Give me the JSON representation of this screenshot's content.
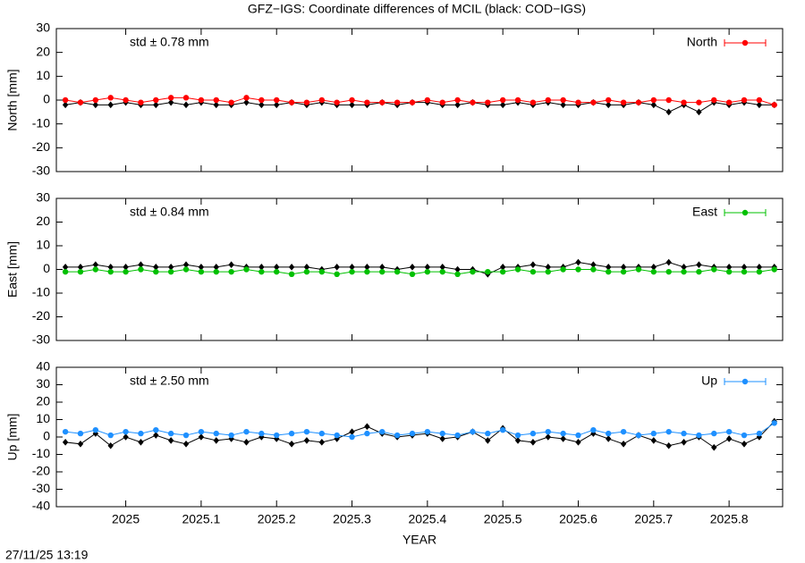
{
  "chart_data": [
    {
      "type": "line",
      "title": "GFZ−IGS: Coordinate differences of MCIL (black: COD−IGS)",
      "ylabel": "North [mm]",
      "annotation": "std ± 0.78 mm",
      "legend": "upper right",
      "xlim": [
        2024.908,
        2025.871
      ],
      "ylim": [
        -30,
        30
      ],
      "yticks": [
        -30,
        -20,
        -10,
        0,
        10,
        20,
        30
      ],
      "x": [
        2024.92,
        2024.94,
        2024.96,
        2024.98,
        2025.0,
        2025.02,
        2025.04,
        2025.06,
        2025.08,
        2025.1,
        2025.12,
        2025.14,
        2025.16,
        2025.18,
        2025.2,
        2025.22,
        2025.24,
        2025.26,
        2025.28,
        2025.3,
        2025.32,
        2025.34,
        2025.36,
        2025.38,
        2025.4,
        2025.42,
        2025.44,
        2025.46,
        2025.48,
        2025.5,
        2025.52,
        2025.54,
        2025.56,
        2025.58,
        2025.6,
        2025.62,
        2025.64,
        2025.66,
        2025.68,
        2025.7,
        2025.72,
        2025.74,
        2025.76,
        2025.78,
        2025.8,
        2025.82,
        2025.84,
        2025.86
      ],
      "series": [
        {
          "name": "North",
          "color": "#ff0000",
          "values": [
            0,
            -1,
            0,
            1,
            0,
            -1,
            0,
            1,
            1,
            0,
            0,
            -1,
            1,
            0,
            0,
            -1,
            -1,
            0,
            -1,
            0,
            -1,
            -1,
            -1,
            -1,
            0,
            -1,
            0,
            -1,
            -1,
            0,
            0,
            -1,
            0,
            0,
            -1,
            -1,
            0,
            -1,
            -1,
            0,
            0,
            -1,
            -1,
            0,
            -1,
            0,
            0,
            -2
          ]
        },
        {
          "color": "#000000",
          "values": [
            -2,
            -1,
            -2,
            -2,
            -1,
            -2,
            -2,
            -1,
            -2,
            -1,
            -2,
            -2,
            -1,
            -2,
            -2,
            -1,
            -2,
            -1,
            -2,
            -2,
            -2,
            -1,
            -2,
            -1,
            -1,
            -2,
            -2,
            -1,
            -2,
            -2,
            -1,
            -2,
            -1,
            -2,
            -2,
            -1,
            -2,
            -2,
            -1,
            -2,
            -5,
            -2,
            -5,
            -1,
            -2,
            -1,
            -2,
            -2
          ]
        }
      ]
    },
    {
      "type": "line",
      "ylabel": "East [mm]",
      "annotation": "std ± 0.84 mm",
      "legend": "upper right",
      "xlim": [
        2024.908,
        2025.871
      ],
      "ylim": [
        -30,
        30
      ],
      "yticks": [
        -30,
        -20,
        -10,
        0,
        10,
        20,
        30
      ],
      "x": [
        2024.92,
        2024.94,
        2024.96,
        2024.98,
        2025.0,
        2025.02,
        2025.04,
        2025.06,
        2025.08,
        2025.1,
        2025.12,
        2025.14,
        2025.16,
        2025.18,
        2025.2,
        2025.22,
        2025.24,
        2025.26,
        2025.28,
        2025.3,
        2025.32,
        2025.34,
        2025.36,
        2025.38,
        2025.4,
        2025.42,
        2025.44,
        2025.46,
        2025.48,
        2025.5,
        2025.52,
        2025.54,
        2025.56,
        2025.58,
        2025.6,
        2025.62,
        2025.64,
        2025.66,
        2025.68,
        2025.7,
        2025.72,
        2025.74,
        2025.76,
        2025.78,
        2025.8,
        2025.82,
        2025.84,
        2025.86
      ],
      "series": [
        {
          "name": "East",
          "color": "#00c000",
          "values": [
            -1,
            -1,
            0,
            -1,
            -1,
            0,
            -1,
            -1,
            0,
            -1,
            -1,
            -1,
            0,
            -1,
            -1,
            -2,
            -1,
            -1,
            -2,
            -1,
            -1,
            -1,
            -1,
            -2,
            -1,
            -1,
            -2,
            -1,
            -1,
            -1,
            0,
            -1,
            -1,
            0,
            0,
            0,
            -1,
            -1,
            0,
            -1,
            -1,
            -1,
            -1,
            0,
            -1,
            -1,
            -1,
            0
          ]
        },
        {
          "color": "#000000",
          "values": [
            1,
            1,
            2,
            1,
            1,
            2,
            1,
            1,
            2,
            1,
            1,
            2,
            1,
            1,
            1,
            1,
            1,
            0,
            1,
            1,
            1,
            1,
            0,
            1,
            1,
            1,
            0,
            0,
            -2,
            1,
            1,
            2,
            1,
            1,
            3,
            2,
            1,
            1,
            1,
            1,
            3,
            1,
            2,
            1,
            1,
            1,
            1,
            1
          ]
        }
      ]
    },
    {
      "type": "line",
      "ylabel": "Up [mm]",
      "annotation": "std ± 2.50 mm",
      "legend": "upper right",
      "xlabel": "YEAR",
      "xlim": [
        2024.908,
        2025.871
      ],
      "ylim": [
        -40,
        40
      ],
      "yticks": [
        -40,
        -30,
        -20,
        -10,
        0,
        10,
        20,
        30,
        40
      ],
      "xticks": [
        2025,
        2025.1,
        2025.2,
        2025.3,
        2025.4,
        2025.5,
        2025.6,
        2025.7,
        2025.8
      ],
      "x": [
        2024.92,
        2024.94,
        2024.96,
        2024.98,
        2025.0,
        2025.02,
        2025.04,
        2025.06,
        2025.08,
        2025.1,
        2025.12,
        2025.14,
        2025.16,
        2025.18,
        2025.2,
        2025.22,
        2025.24,
        2025.26,
        2025.28,
        2025.3,
        2025.32,
        2025.34,
        2025.36,
        2025.38,
        2025.4,
        2025.42,
        2025.44,
        2025.46,
        2025.48,
        2025.5,
        2025.52,
        2025.54,
        2025.56,
        2025.58,
        2025.6,
        2025.62,
        2025.64,
        2025.66,
        2025.68,
        2025.7,
        2025.72,
        2025.74,
        2025.76,
        2025.78,
        2025.8,
        2025.82,
        2025.84,
        2025.86
      ],
      "series": [
        {
          "name": "Up",
          "color": "#1e90ff",
          "values": [
            3,
            2,
            4,
            1,
            3,
            2,
            4,
            2,
            1,
            3,
            2,
            1,
            3,
            2,
            1,
            2,
            3,
            2,
            1,
            0,
            2,
            3,
            1,
            2,
            3,
            2,
            1,
            3,
            2,
            4,
            1,
            2,
            3,
            2,
            1,
            4,
            2,
            3,
            1,
            2,
            3,
            2,
            1,
            2,
            3,
            1,
            2,
            8
          ]
        },
        {
          "color": "#000000",
          "values": [
            -3,
            -4,
            2,
            -5,
            0,
            -3,
            1,
            -2,
            -4,
            0,
            -2,
            -1,
            -3,
            0,
            -1,
            -4,
            -2,
            -3,
            -1,
            3,
            6,
            2,
            0,
            1,
            2,
            -1,
            0,
            3,
            -2,
            5,
            -2,
            -3,
            0,
            -1,
            -3,
            2,
            -1,
            -4,
            1,
            -2,
            -5,
            -3,
            0,
            -6,
            -1,
            -4,
            0,
            9
          ]
        }
      ]
    }
  ],
  "footer": "27/11/25 13:19"
}
